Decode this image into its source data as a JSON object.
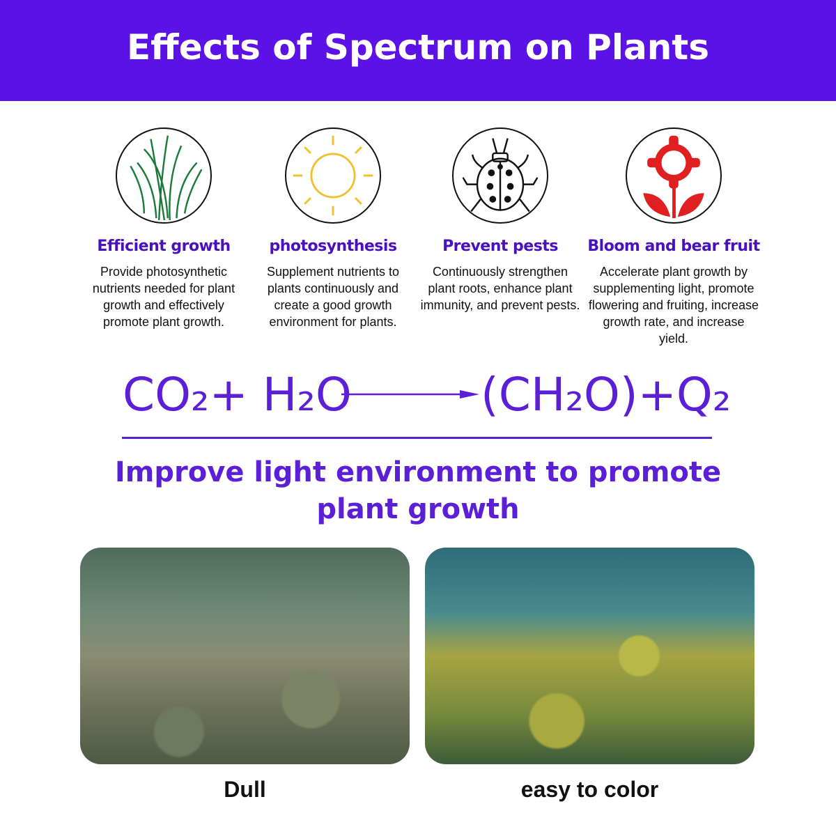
{
  "header": {
    "title": "Effects of Spectrum on Plants"
  },
  "features": [
    {
      "icon": "grass-icon",
      "title": "Efficient growth",
      "text": "Provide photosynthetic nutrients needed for plant growth and effectively promote plant growth.",
      "color": "#1a7a3a"
    },
    {
      "icon": "sun-icon",
      "title": "photosynthesis",
      "text": "Supplement nutrients to plants continuously and create a good growth environment for plants.",
      "color": "#f0c030"
    },
    {
      "icon": "ladybug-icon",
      "title": "Prevent pests",
      "text": "Continuously strengthen plant roots, enhance plant immunity, and prevent pests.",
      "color": "#111111"
    },
    {
      "icon": "flower-icon",
      "title": "Bloom and bear fruit",
      "text": "Accelerate plant growth by supplementing light, promote flowering and fruiting, increase growth rate, and increase yield.",
      "color": "#e02020"
    }
  ],
  "equation": {
    "left": "CO₂+  H₂O",
    "right": "(CH₂O)+Q₂"
  },
  "tagline": {
    "line1": "Improve light environment to promote",
    "line2": "plant growth"
  },
  "photos": [
    {
      "caption": "Dull"
    },
    {
      "caption": "easy to color"
    }
  ],
  "colors": {
    "brand_purple": "#5a12e6",
    "text_purple": "#5a1fd6"
  }
}
